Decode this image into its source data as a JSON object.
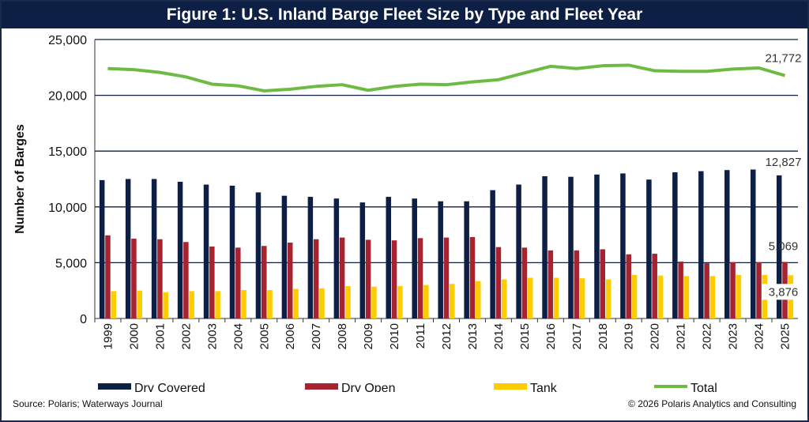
{
  "title": "Figure 1: U.S. Inland Barge Fleet Size by Type and Fleet Year",
  "source": "Source: Polaris; Waterways Journal",
  "copyright": "© 2026 Polaris Analytics and Consulting",
  "colors": {
    "title_bg": "#0d1f45",
    "dry_covered": "#0d1f45",
    "dry_open": "#a6232f",
    "tank": "#ffcc00",
    "total": "#6dbb45",
    "grid": "#0d1f45"
  },
  "chart_data": {
    "type": "bar",
    "ylabel": "Number of Barges",
    "xlabel": "",
    "ylim": [
      0,
      25000
    ],
    "yticks": [
      0,
      5000,
      10000,
      15000,
      20000,
      25000
    ],
    "ytick_labels": [
      "0",
      "5,000",
      "10,000",
      "15,000",
      "20,000",
      "25,000"
    ],
    "grid": true,
    "legend_position": "bottom",
    "categories": [
      "1999",
      "2000",
      "2001",
      "2002",
      "2003",
      "2004",
      "2005",
      "2006",
      "2007",
      "2008",
      "2009",
      "2010",
      "2011",
      "2012",
      "2013",
      "2014",
      "2015",
      "2016",
      "2017",
      "2018",
      "2019",
      "2020",
      "2021",
      "2022",
      "2023",
      "2024",
      "2025"
    ],
    "series": [
      {
        "name": "Dry Covered",
        "kind": "bar",
        "values": [
          12400,
          12500,
          12500,
          12250,
          12000,
          11900,
          11300,
          11000,
          10900,
          10750,
          10400,
          10900,
          10750,
          10500,
          10500,
          11500,
          12000,
          12750,
          12700,
          12900,
          13000,
          12450,
          13100,
          13200,
          13300,
          13350,
          12827
        ]
      },
      {
        "name": "Dry Open",
        "kind": "bar",
        "values": [
          7450,
          7150,
          7100,
          6850,
          6450,
          6350,
          6500,
          6800,
          7100,
          7250,
          7050,
          7000,
          7200,
          7250,
          7300,
          6400,
          6350,
          6100,
          6100,
          6200,
          5750,
          5800,
          5100,
          4950,
          5050,
          5050,
          5069
        ]
      },
      {
        "name": "Tank",
        "kind": "bar",
        "values": [
          2450,
          2500,
          2350,
          2450,
          2450,
          2550,
          2550,
          2650,
          2700,
          2900,
          2850,
          2900,
          3000,
          3100,
          3350,
          3500,
          3650,
          3650,
          3600,
          3500,
          3900,
          3850,
          3800,
          3800,
          3900,
          3900,
          3876
        ]
      },
      {
        "name": "Total",
        "kind": "line",
        "values": [
          22400,
          22300,
          22050,
          21650,
          21000,
          20850,
          20400,
          20550,
          20800,
          20950,
          20450,
          20800,
          21000,
          20950,
          21200,
          21400,
          22000,
          22600,
          22400,
          22650,
          22700,
          22200,
          22150,
          22150,
          22350,
          22450,
          21772
        ]
      }
    ],
    "annotations": [
      {
        "series": "Total",
        "category": "2025",
        "text": "21,772"
      },
      {
        "series": "Dry Covered",
        "category": "2025",
        "text": "12,827"
      },
      {
        "series": "Dry Open",
        "category": "2025",
        "text": "5,069"
      },
      {
        "series": "Tank",
        "category": "2025",
        "text": "3,876"
      }
    ]
  }
}
